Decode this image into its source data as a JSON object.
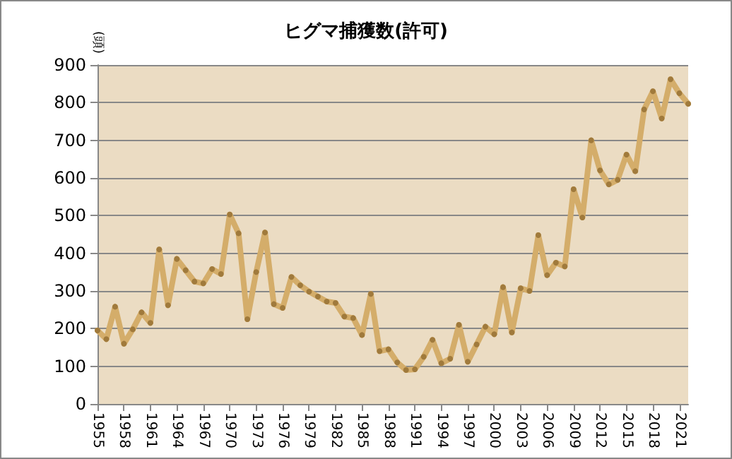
{
  "chart_data": {
    "type": "line",
    "title": "ヒグマ捕獲数(許可)",
    "ylabel": "(頭)",
    "categories": [
      "1955",
      null,
      null,
      "1958",
      null,
      null,
      "1961",
      null,
      null,
      "1964",
      null,
      null,
      "1967",
      null,
      null,
      "1970",
      null,
      null,
      "1973",
      null,
      null,
      "1976",
      null,
      null,
      "1979",
      null,
      null,
      "1982",
      null,
      null,
      "1985",
      null,
      null,
      "1988",
      null,
      null,
      "1991",
      null,
      null,
      "1994",
      null,
      null,
      "1997",
      null,
      null,
      "2000",
      null,
      null,
      "2003",
      null,
      null,
      "2006",
      null,
      null,
      "2009",
      null,
      null,
      "2012",
      null,
      null,
      "2015",
      null,
      null,
      "2018",
      null,
      null,
      "2021",
      null
    ],
    "series": [
      {
        "color": "#d4ad6a",
        "values": [
          195,
          172,
          258,
          160,
          198,
          243,
          215,
          410,
          262,
          385,
          355,
          325,
          320,
          358,
          345,
          503,
          453,
          225,
          350,
          455,
          265,
          255,
          337,
          315,
          298,
          285,
          272,
          268,
          232,
          228,
          183,
          292,
          140,
          145,
          110,
          90,
          92,
          125,
          170,
          108,
          120,
          210,
          112,
          158,
          205,
          185,
          310,
          190,
          307,
          300,
          448,
          342,
          375,
          365,
          570,
          495,
          700,
          620,
          583,
          595,
          662,
          618,
          782,
          830,
          758,
          862,
          825,
          797
        ]
      }
    ],
    "ylim": [
      0,
      900
    ],
    "yticks": [
      0,
      100,
      200,
      300,
      400,
      500,
      600,
      700,
      800,
      900
    ],
    "grid": "y",
    "marker": "circle",
    "line_style": "solid"
  }
}
